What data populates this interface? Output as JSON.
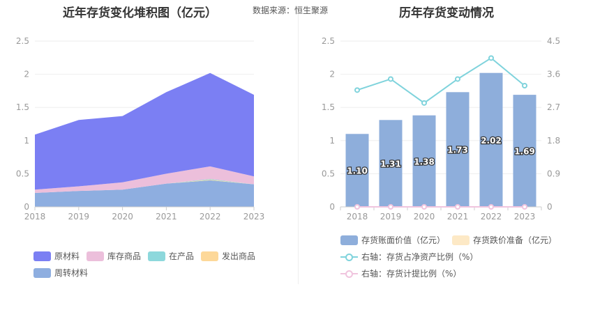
{
  "header": {
    "left_title": "近年存货变化堆积图（亿元）",
    "source": "数据来源：恒生聚源",
    "right_title": "历年存货变动情况"
  },
  "chart_data": [
    {
      "type": "area",
      "title": "近年存货变化堆积图（亿元）",
      "x": [
        "2018",
        "2019",
        "2020",
        "2021",
        "2022",
        "2023"
      ],
      "ylim": [
        0,
        2.5
      ],
      "yticks": [
        "0",
        "0.5",
        "1",
        "1.5",
        "2",
        "2.5"
      ],
      "stacked": true,
      "grid": true,
      "legend_position": "bottom",
      "series": [
        {
          "name": "周转材料",
          "color": "#8eaee0",
          "values": [
            0.21,
            0.24,
            0.26,
            0.35,
            0.4,
            0.34
          ]
        },
        {
          "name": "发出商品",
          "color": "#fdd899",
          "values": [
            0.0,
            0.0,
            0.0,
            0.0,
            0.01,
            0.0
          ]
        },
        {
          "name": "在产品",
          "color": "#8dd8dc",
          "values": [
            0.0,
            0.0,
            0.0,
            0.0,
            0.01,
            0.0
          ]
        },
        {
          "name": "库存商品",
          "color": "#ecbfdb",
          "values": [
            0.05,
            0.07,
            0.11,
            0.15,
            0.19,
            0.12
          ]
        },
        {
          "name": "原材料",
          "color": "#7b7ff3",
          "values": [
            0.83,
            1.0,
            1.0,
            1.23,
            1.41,
            1.23
          ]
        }
      ],
      "legend_order": [
        "原材料",
        "库存商品",
        "在产品",
        "发出商品",
        "周转材料"
      ]
    },
    {
      "type": "bar",
      "title": "历年存货变动情况",
      "categories": [
        "2018",
        "2019",
        "2020",
        "2021",
        "2022",
        "2023"
      ],
      "ylim": [
        0,
        2.5
      ],
      "yticks": [
        "0",
        "0.5",
        "1",
        "1.5",
        "2",
        "2.5"
      ],
      "y2lim": [
        0,
        4.5
      ],
      "y2ticks": [
        "0",
        "0.9",
        "1.8",
        "2.7",
        "3.6",
        "4.5"
      ],
      "legend_position": "bottom",
      "series": [
        {
          "name": "存货账面价值（亿元）",
          "axis": "left",
          "kind": "bar",
          "color": "#8eaedb",
          "values": [
            1.1,
            1.31,
            1.38,
            1.73,
            2.02,
            1.69
          ],
          "labels": [
            "1.10",
            "1.31",
            "1.38",
            "1.73",
            "2.02",
            "1.69"
          ]
        },
        {
          "name": "存货跌价准备（亿元）",
          "axis": "left",
          "kind": "bar",
          "color": "#fde9c6",
          "values": [
            0,
            0,
            0,
            0,
            0,
            0
          ]
        },
        {
          "name": "右轴：存货占净资产比例（%）",
          "axis": "right",
          "kind": "line",
          "color": "#7fd3dc",
          "values": [
            3.17,
            3.47,
            2.82,
            3.47,
            4.04,
            3.29
          ]
        },
        {
          "name": "右轴：存货计提比例（%）",
          "axis": "right",
          "kind": "line",
          "color": "#f0c4de",
          "values": [
            0,
            0,
            0,
            0,
            0,
            0
          ]
        }
      ]
    }
  ]
}
